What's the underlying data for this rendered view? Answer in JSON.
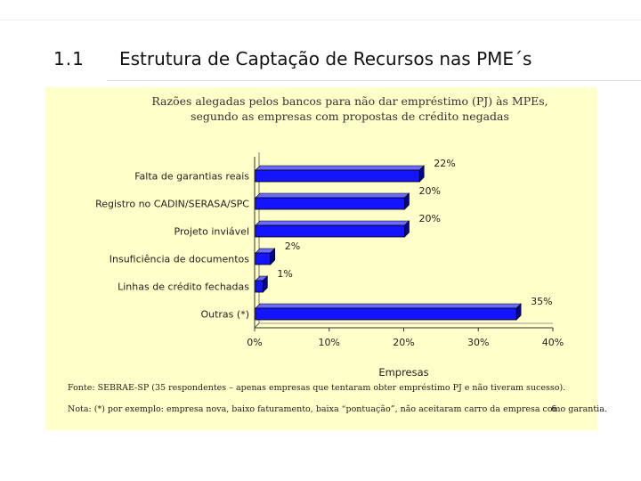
{
  "slide": {
    "number": "1.1",
    "title": "Estrutura de Captação de Recursos nas PME´s",
    "page_number": "6"
  },
  "chart_data": {
    "type": "bar",
    "orientation": "horizontal",
    "title": "Razões alegadas pelos bancos para não dar empréstimo (PJ) às MPEs, segundo as empresas com propostas de crédito negadas",
    "categories": [
      "Falta de garantias reais",
      "Registro no CADIN/SERASA/SPC",
      "Projeto inviável",
      "Insuficiência de documentos",
      "Linhas de crédito fechadas",
      "Outras (*)"
    ],
    "values": [
      22,
      20,
      20,
      2,
      1,
      35
    ],
    "value_labels": [
      "22%",
      "20%",
      "20%",
      "2%",
      "1%",
      "35%"
    ],
    "xlabel": "Empresas",
    "xlim": [
      0,
      40
    ],
    "xticks": [
      "0%",
      "10%",
      "20%",
      "30%",
      "40%"
    ],
    "bar_color": "#1414ff",
    "bar_shade": "#05058a",
    "background": "#ffffc9"
  },
  "notes": {
    "source": "Fonte: SEBRAE-SP (35 respondentes – apenas empresas que tentaram obter empréstimo PJ e não tiveram sucesso).",
    "note": "Nota: (*) por exemplo: empresa nova, baixo faturamento, baixa “pontuação”, não aceitaram carro da empresa como garantia."
  }
}
